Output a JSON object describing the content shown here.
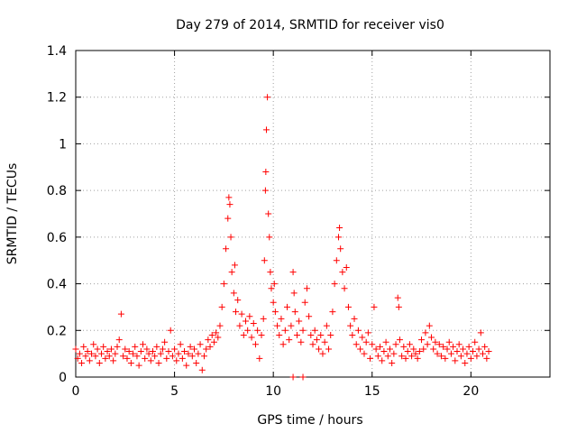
{
  "chart_data": {
    "type": "scatter",
    "title": "Day 279 of 2014, SRMTID for receiver vis0",
    "xlabel": "GPS time / hours",
    "ylabel": "SRMTID / TECUs",
    "xlim": [
      0,
      24
    ],
    "ylim": [
      0,
      1.4
    ],
    "grid": true,
    "x_ticks": [
      0,
      5,
      10,
      15,
      20
    ],
    "y_ticks": [
      0,
      0.2,
      0.4,
      0.6,
      0.8,
      1,
      1.2,
      1.4
    ],
    "x_tick_labels": [
      "0",
      "5",
      "10",
      "15",
      "20"
    ],
    "y_tick_labels": [
      "0",
      "0.2",
      "0.4",
      "0.6",
      "0.8",
      "1",
      "1.2",
      "1.4"
    ],
    "marker": "+",
    "series": [
      {
        "name": "SRMTID",
        "color": "#ff0000",
        "points": [
          [
            0.0,
            0.12
          ],
          [
            0.1,
            0.08
          ],
          [
            0.2,
            0.1
          ],
          [
            0.3,
            0.06
          ],
          [
            0.4,
            0.13
          ],
          [
            0.5,
            0.09
          ],
          [
            0.6,
            0.11
          ],
          [
            0.7,
            0.07
          ],
          [
            0.8,
            0.1
          ],
          [
            0.9,
            0.14
          ],
          [
            1.0,
            0.09
          ],
          [
            1.1,
            0.12
          ],
          [
            1.2,
            0.06
          ],
          [
            1.3,
            0.1
          ],
          [
            1.4,
            0.13
          ],
          [
            1.5,
            0.08
          ],
          [
            1.6,
            0.11
          ],
          [
            1.7,
            0.09
          ],
          [
            1.8,
            0.12
          ],
          [
            1.9,
            0.07
          ],
          [
            2.0,
            0.1
          ],
          [
            2.1,
            0.13
          ],
          [
            2.2,
            0.16
          ],
          [
            2.3,
            0.27
          ],
          [
            2.4,
            0.09
          ],
          [
            2.5,
            0.12
          ],
          [
            2.6,
            0.08
          ],
          [
            2.7,
            0.11
          ],
          [
            2.8,
            0.06
          ],
          [
            2.9,
            0.1
          ],
          [
            3.0,
            0.13
          ],
          [
            3.1,
            0.09
          ],
          [
            3.2,
            0.05
          ],
          [
            3.3,
            0.11
          ],
          [
            3.4,
            0.14
          ],
          [
            3.5,
            0.08
          ],
          [
            3.6,
            0.12
          ],
          [
            3.7,
            0.1
          ],
          [
            3.8,
            0.07
          ],
          [
            3.9,
            0.11
          ],
          [
            4.0,
            0.09
          ],
          [
            4.1,
            0.13
          ],
          [
            4.2,
            0.06
          ],
          [
            4.3,
            0.1
          ],
          [
            4.4,
            0.12
          ],
          [
            4.5,
            0.15
          ],
          [
            4.6,
            0.08
          ],
          [
            4.7,
            0.11
          ],
          [
            4.8,
            0.2
          ],
          [
            4.9,
            0.09
          ],
          [
            5.0,
            0.12
          ],
          [
            5.1,
            0.07
          ],
          [
            5.2,
            0.1
          ],
          [
            5.3,
            0.14
          ],
          [
            5.4,
            0.08
          ],
          [
            5.5,
            0.11
          ],
          [
            5.6,
            0.05
          ],
          [
            5.7,
            0.1
          ],
          [
            5.8,
            0.13
          ],
          [
            5.9,
            0.09
          ],
          [
            6.0,
            0.12
          ],
          [
            6.1,
            0.06
          ],
          [
            6.2,
            0.1
          ],
          [
            6.3,
            0.14
          ],
          [
            6.4,
            0.03
          ],
          [
            6.5,
            0.09
          ],
          [
            6.6,
            0.12
          ],
          [
            6.7,
            0.16
          ],
          [
            6.8,
            0.13
          ],
          [
            6.9,
            0.18
          ],
          [
            7.0,
            0.15
          ],
          [
            7.1,
            0.19
          ],
          [
            7.2,
            0.17
          ],
          [
            7.3,
            0.22
          ],
          [
            7.4,
            0.3
          ],
          [
            7.5,
            0.4
          ],
          [
            7.6,
            0.55
          ],
          [
            7.7,
            0.68
          ],
          [
            7.75,
            0.77
          ],
          [
            7.8,
            0.74
          ],
          [
            7.85,
            0.6
          ],
          [
            7.9,
            0.45
          ],
          [
            8.0,
            0.36
          ],
          [
            8.05,
            0.48
          ],
          [
            8.1,
            0.28
          ],
          [
            8.2,
            0.33
          ],
          [
            8.3,
            0.22
          ],
          [
            8.4,
            0.27
          ],
          [
            8.5,
            0.18
          ],
          [
            8.6,
            0.24
          ],
          [
            8.7,
            0.2
          ],
          [
            8.8,
            0.26
          ],
          [
            8.9,
            0.17
          ],
          [
            9.0,
            0.23
          ],
          [
            9.1,
            0.14
          ],
          [
            9.2,
            0.2
          ],
          [
            9.3,
            0.08
          ],
          [
            9.4,
            0.18
          ],
          [
            9.5,
            0.25
          ],
          [
            9.55,
            0.5
          ],
          [
            9.6,
            0.8
          ],
          [
            9.62,
            0.88
          ],
          [
            9.65,
            1.06
          ],
          [
            9.7,
            1.2
          ],
          [
            9.75,
            0.7
          ],
          [
            9.8,
            0.6
          ],
          [
            9.85,
            0.45
          ],
          [
            9.9,
            0.38
          ],
          [
            10.0,
            0.32
          ],
          [
            10.05,
            0.4
          ],
          [
            10.1,
            0.28
          ],
          [
            10.2,
            0.22
          ],
          [
            10.3,
            0.18
          ],
          [
            10.4,
            0.25
          ],
          [
            10.5,
            0.14
          ],
          [
            10.6,
            0.2
          ],
          [
            10.7,
            0.3
          ],
          [
            10.8,
            0.16
          ],
          [
            10.9,
            0.22
          ],
          [
            11.0,
            0.45
          ],
          [
            11.05,
            0.36
          ],
          [
            11.1,
            0.28
          ],
          [
            11.2,
            0.18
          ],
          [
            11.3,
            0.24
          ],
          [
            11.4,
            0.15
          ],
          [
            11.5,
            0.2
          ],
          [
            11.6,
            0.32
          ],
          [
            11.7,
            0.38
          ],
          [
            11.8,
            0.26
          ],
          [
            11.9,
            0.18
          ],
          [
            12.0,
            0.14
          ],
          [
            12.1,
            0.2
          ],
          [
            12.2,
            0.16
          ],
          [
            12.3,
            0.12
          ],
          [
            12.4,
            0.18
          ],
          [
            12.5,
            0.1
          ],
          [
            12.6,
            0.15
          ],
          [
            12.7,
            0.22
          ],
          [
            12.8,
            0.12
          ],
          [
            12.9,
            0.18
          ],
          [
            13.0,
            0.28
          ],
          [
            13.1,
            0.4
          ],
          [
            13.2,
            0.5
          ],
          [
            13.3,
            0.6
          ],
          [
            13.35,
            0.64
          ],
          [
            13.4,
            0.55
          ],
          [
            13.5,
            0.45
          ],
          [
            13.6,
            0.38
          ],
          [
            13.7,
            0.47
          ],
          [
            13.8,
            0.3
          ],
          [
            13.9,
            0.22
          ],
          [
            14.0,
            0.18
          ],
          [
            14.1,
            0.25
          ],
          [
            14.2,
            0.14
          ],
          [
            14.3,
            0.2
          ],
          [
            14.4,
            0.12
          ],
          [
            14.5,
            0.17
          ],
          [
            14.6,
            0.1
          ],
          [
            14.7,
            0.15
          ],
          [
            14.8,
            0.19
          ],
          [
            14.9,
            0.08
          ],
          [
            15.0,
            0.14
          ],
          [
            15.1,
            0.3
          ],
          [
            15.2,
            0.12
          ],
          [
            15.3,
            0.09
          ],
          [
            15.4,
            0.13
          ],
          [
            15.5,
            0.07
          ],
          [
            15.6,
            0.11
          ],
          [
            15.7,
            0.15
          ],
          [
            15.8,
            0.09
          ],
          [
            15.9,
            0.12
          ],
          [
            16.0,
            0.06
          ],
          [
            16.1,
            0.1
          ],
          [
            16.2,
            0.14
          ],
          [
            16.3,
            0.34
          ],
          [
            16.35,
            0.3
          ],
          [
            16.4,
            0.16
          ],
          [
            16.5,
            0.09
          ],
          [
            16.6,
            0.13
          ],
          [
            16.7,
            0.08
          ],
          [
            16.8,
            0.11
          ],
          [
            16.9,
            0.14
          ],
          [
            17.0,
            0.09
          ],
          [
            17.1,
            0.12
          ],
          [
            17.2,
            0.1
          ],
          [
            17.3,
            0.08
          ],
          [
            17.4,
            0.11
          ],
          [
            17.5,
            0.16
          ],
          [
            17.6,
            0.12
          ],
          [
            17.7,
            0.19
          ],
          [
            17.8,
            0.14
          ],
          [
            17.9,
            0.22
          ],
          [
            18.0,
            0.17
          ],
          [
            18.1,
            0.12
          ],
          [
            18.2,
            0.15
          ],
          [
            18.3,
            0.1
          ],
          [
            18.4,
            0.14
          ],
          [
            18.5,
            0.09
          ],
          [
            18.6,
            0.13
          ],
          [
            18.7,
            0.08
          ],
          [
            18.8,
            0.12
          ],
          [
            18.9,
            0.15
          ],
          [
            19.0,
            0.1
          ],
          [
            19.1,
            0.13
          ],
          [
            19.2,
            0.07
          ],
          [
            19.3,
            0.11
          ],
          [
            19.4,
            0.14
          ],
          [
            19.5,
            0.09
          ],
          [
            19.6,
            0.12
          ],
          [
            19.7,
            0.06
          ],
          [
            19.8,
            0.1
          ],
          [
            19.9,
            0.13
          ],
          [
            20.0,
            0.08
          ],
          [
            20.1,
            0.11
          ],
          [
            20.2,
            0.15
          ],
          [
            20.3,
            0.09
          ],
          [
            20.4,
            0.12
          ],
          [
            20.5,
            0.19
          ],
          [
            20.6,
            0.1
          ],
          [
            20.7,
            0.13
          ],
          [
            20.8,
            0.08
          ],
          [
            20.9,
            0.11
          ],
          [
            11.0,
            0.0
          ],
          [
            11.5,
            0.0
          ]
        ]
      }
    ]
  }
}
